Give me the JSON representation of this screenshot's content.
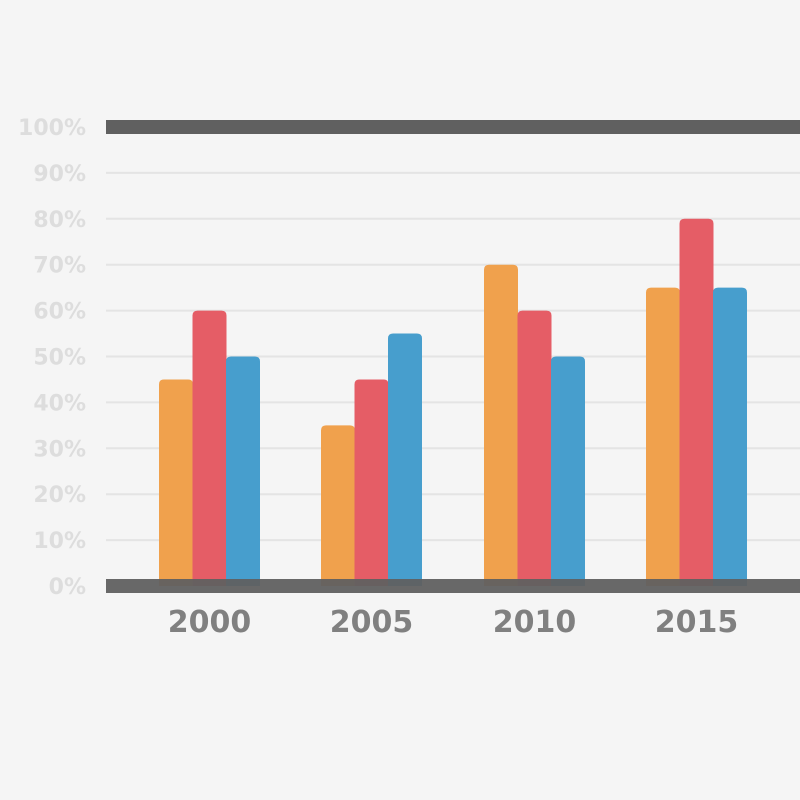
{
  "chart_data": {
    "type": "bar",
    "categories": [
      "2000",
      "2005",
      "2010",
      "2015"
    ],
    "series": [
      {
        "values": [
          45,
          35,
          70,
          65
        ],
        "color": "#f0a14d"
      },
      {
        "values": [
          60,
          45,
          60,
          80
        ],
        "color": "#e55d66"
      },
      {
        "values": [
          50,
          55,
          50,
          65
        ],
        "color": "#479ecd"
      }
    ],
    "yticks": [
      "0%",
      "10%",
      "20%",
      "30%",
      "40%",
      "50%",
      "60%",
      "70%",
      "80%",
      "90%",
      "100%"
    ],
    "ylim": [
      0,
      100
    ],
    "grid": true,
    "colors": {
      "background": "#f5f5f5",
      "gridline": "#e4e4e4",
      "axis_line": "#606060",
      "ytick_text": "#dddddd",
      "xtick_text": "#808080"
    }
  }
}
